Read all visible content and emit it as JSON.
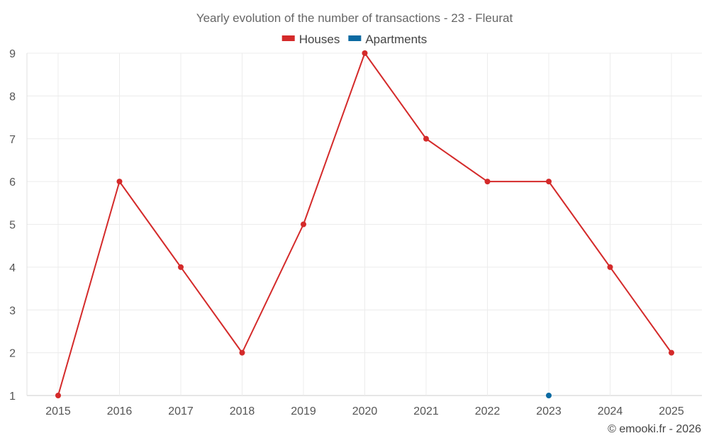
{
  "chart_data": {
    "type": "line",
    "title": "Yearly evolution of the number of transactions - 23 - Fleurat",
    "categories": [
      "2015",
      "2016",
      "2017",
      "2018",
      "2019",
      "2020",
      "2021",
      "2022",
      "2023",
      "2024",
      "2025"
    ],
    "series": [
      {
        "name": "Houses",
        "color": "#d42a2a",
        "values": [
          1,
          6,
          4,
          2,
          5,
          9,
          7,
          6,
          6,
          4,
          2
        ]
      },
      {
        "name": "Apartments",
        "color": "#0b6aa2",
        "values": [
          null,
          null,
          null,
          null,
          null,
          null,
          null,
          null,
          1,
          null,
          null
        ]
      }
    ],
    "ylim": [
      1,
      9
    ],
    "yticks": [
      1,
      2,
      3,
      4,
      5,
      6,
      7,
      8,
      9
    ],
    "xlabel": "",
    "ylabel": "",
    "legend": "top-center",
    "grid": true
  },
  "credit": "© emooki.fr - 2026"
}
